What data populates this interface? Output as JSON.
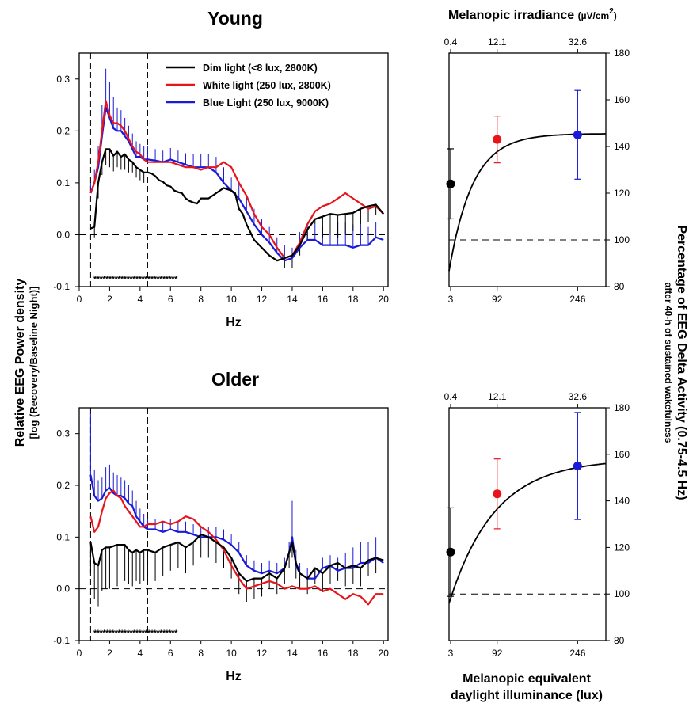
{
  "figure": {
    "left_ylabel": "Relative EEG Power density",
    "left_ylabel_sub": "[log (Recovery/Baseline Night)]",
    "right_ylabel": "Percentage of EEG Delta Activity (0.75-4.5 Hz)",
    "right_ylabel_sub": "after 40-h of sustained wakefulness",
    "top_axis_title": "Melanopic irradiance",
    "top_axis_unit": "(µV/cm",
    "top_axis_unit_sup": "2",
    "top_axis_unit_close": ")",
    "bottom_axis_title_line1": "Melanopic equivalent",
    "bottom_axis_title_line2": "daylight illuminance (lux)",
    "significance_marks": "****************************"
  },
  "colors": {
    "dim": "#000000",
    "white": "#e8141a",
    "blue": "#1a1ad8"
  },
  "chart_data": [
    {
      "id": "young_spectrum",
      "type": "line",
      "title": "Young",
      "xlabel": "Hz",
      "ylabel": "Relative EEG Power density",
      "xlim": [
        0,
        20.3
      ],
      "ylim": [
        -0.1,
        0.35
      ],
      "xticks": [
        0,
        2,
        4,
        6,
        8,
        10,
        12,
        14,
        16,
        18,
        20
      ],
      "yticks": [
        -0.1,
        0.0,
        0.1,
        0.2,
        0.3
      ],
      "vlines": [
        0.75,
        4.5
      ],
      "hline": 0.0,
      "legend_position": "top-right",
      "series": [
        {
          "name": "Dim light (<8 lux, 2800K)",
          "key": "dim",
          "x": [
            0.75,
            1,
            1.25,
            1.5,
            1.75,
            2,
            2.25,
            2.5,
            2.75,
            3,
            3.25,
            3.5,
            3.75,
            4,
            4.25,
            4.5,
            4.75,
            5,
            5.25,
            5.5,
            5.75,
            6,
            6.25,
            6.5,
            6.75,
            7,
            7.25,
            7.5,
            7.75,
            8,
            8.5,
            9,
            9.5,
            10,
            10.25,
            10.5,
            10.75,
            11,
            11.5,
            12,
            12.5,
            13,
            13.5,
            14,
            14.5,
            15,
            15.5,
            16,
            16.5,
            17,
            17.5,
            18,
            18.5,
            19,
            19.5,
            20
          ],
          "y": [
            0.012,
            0.015,
            0.1,
            0.14,
            0.165,
            0.165,
            0.152,
            0.16,
            0.15,
            0.155,
            0.145,
            0.14,
            0.13,
            0.125,
            0.12,
            0.12,
            0.118,
            0.113,
            0.105,
            0.102,
            0.095,
            0.093,
            0.085,
            0.082,
            0.08,
            0.07,
            0.065,
            0.062,
            0.06,
            0.07,
            0.07,
            0.08,
            0.09,
            0.085,
            0.08,
            0.05,
            0.04,
            0.02,
            -0.01,
            -0.025,
            -0.04,
            -0.05,
            -0.045,
            -0.04,
            -0.02,
            0.01,
            0.03,
            0.035,
            0.04,
            0.038,
            0.04,
            0.042,
            0.05,
            0.055,
            0.058,
            0.04
          ],
          "error": [
            0,
            0.02,
            0.03,
            0.025,
            0.03,
            0.035,
            0.03,
            0.03,
            0.025,
            0.03,
            0.025,
            0.02,
            0.02,
            0.02,
            0.02,
            0,
            0,
            0,
            0,
            0,
            0,
            0,
            0,
            0,
            0,
            0,
            0,
            0,
            0,
            0,
            0,
            0,
            0,
            0,
            0,
            0,
            0,
            0,
            0,
            0,
            0,
            0,
            0.02,
            0.025,
            0.02,
            0.02,
            0.01,
            0.04,
            0.04,
            0.045,
            0.04,
            0.035,
            0.03,
            0.03,
            0.02,
            0
          ]
        },
        {
          "name": "White light (250 lux, 2800K)",
          "key": "white",
          "x": [
            0.75,
            1,
            1.25,
            1.5,
            1.75,
            2,
            2.25,
            2.5,
            2.75,
            3,
            3.25,
            3.5,
            3.75,
            4,
            4.25,
            4.5,
            5,
            5.5,
            6,
            6.5,
            7,
            7.5,
            8,
            8.5,
            9,
            9.5,
            10,
            10.5,
            11,
            11.5,
            12,
            12.5,
            13,
            13.5,
            14,
            14.5,
            15,
            15.5,
            16,
            16.5,
            17,
            17.5,
            18,
            18.5,
            19,
            19.5,
            20
          ],
          "y": [
            0.08,
            0.1,
            0.14,
            0.2,
            0.258,
            0.23,
            0.215,
            0.215,
            0.21,
            0.2,
            0.185,
            0.17,
            0.16,
            0.155,
            0.145,
            0.14,
            0.14,
            0.14,
            0.14,
            0.135,
            0.13,
            0.13,
            0.125,
            0.13,
            0.13,
            0.14,
            0.13,
            0.1,
            0.075,
            0.04,
            0.015,
            0.0,
            -0.025,
            -0.045,
            -0.04,
            -0.015,
            0.02,
            0.045,
            0.055,
            0.06,
            0.07,
            0.08,
            0.07,
            0.06,
            0.05,
            0.055,
            0.04
          ],
          "error": []
        },
        {
          "name": "Blue Light (250 lux, 9000K)",
          "key": "blue",
          "x": [
            0.75,
            1,
            1.25,
            1.5,
            1.75,
            2,
            2.25,
            2.5,
            2.75,
            3,
            3.25,
            3.5,
            3.75,
            4,
            4.25,
            4.5,
            5,
            5.5,
            6,
            6.5,
            7,
            7.5,
            8,
            8.5,
            9,
            9.5,
            10,
            10.5,
            11,
            11.5,
            12,
            12.5,
            13,
            13.5,
            14,
            14.5,
            15,
            15.5,
            16,
            16.5,
            17,
            17.5,
            18,
            18.5,
            19,
            19.5,
            20
          ],
          "y": [
            0.08,
            0.1,
            0.13,
            0.19,
            0.245,
            0.225,
            0.205,
            0.2,
            0.2,
            0.19,
            0.18,
            0.165,
            0.15,
            0.15,
            0.145,
            0.145,
            0.143,
            0.14,
            0.145,
            0.14,
            0.135,
            0.13,
            0.13,
            0.13,
            0.12,
            0.1,
            0.085,
            0.07,
            0.045,
            0.02,
            0.0,
            -0.015,
            -0.035,
            -0.05,
            -0.045,
            -0.025,
            -0.01,
            -0.01,
            -0.02,
            -0.02,
            -0.02,
            -0.02,
            -0.025,
            -0.02,
            -0.02,
            -0.005,
            -0.01
          ],
          "error": [
            0.02,
            0.025,
            0.04,
            0.06,
            0.075,
            0.07,
            0.06,
            0.045,
            0.04,
            0.035,
            0.03,
            0.03,
            0.03,
            0.025,
            0.025,
            0.025,
            0.022,
            0.022,
            0.022,
            0.022,
            0.022,
            0.025,
            0.025,
            0.025,
            0.03,
            0.03,
            0.025,
            0.03,
            0.03,
            0.03,
            0.03,
            0.03,
            0.03,
            0.03,
            0.02,
            0.03,
            0.03,
            0.03,
            0.035,
            0.04,
            0.045,
            0.045,
            0.045,
            0.04,
            0.035,
            0.03,
            0
          ]
        }
      ]
    },
    {
      "id": "older_spectrum",
      "type": "line",
      "title": "Older",
      "xlabel": "Hz",
      "ylabel": "Relative EEG Power density",
      "xlim": [
        0,
        20.3
      ],
      "ylim": [
        -0.1,
        0.35
      ],
      "xticks": [
        0,
        2,
        4,
        6,
        8,
        10,
        12,
        14,
        16,
        18,
        20
      ],
      "yticks": [
        -0.1,
        0.0,
        0.1,
        0.2,
        0.3
      ],
      "vlines": [
        0.75,
        4.5
      ],
      "hline": 0.0,
      "series": [
        {
          "name": "Dim light (<8 lux, 2800K)",
          "key": "dim",
          "x": [
            0.75,
            1,
            1.25,
            1.5,
            1.75,
            2,
            2.5,
            3,
            3.25,
            3.5,
            3.75,
            4,
            4.25,
            4.5,
            5,
            5.5,
            6,
            6.5,
            7,
            7.5,
            8,
            8.5,
            9,
            9.5,
            10,
            10.5,
            11,
            11.5,
            12,
            12.5,
            13,
            13.5,
            13.8,
            14,
            14.25,
            14.5,
            15,
            15.5,
            16,
            16.5,
            17,
            17.5,
            18,
            18.5,
            19,
            19.5,
            20
          ],
          "y": [
            0.09,
            0.05,
            0.045,
            0.075,
            0.08,
            0.08,
            0.085,
            0.085,
            0.075,
            0.07,
            0.075,
            0.07,
            0.075,
            0.075,
            0.07,
            0.08,
            0.085,
            0.09,
            0.08,
            0.09,
            0.105,
            0.1,
            0.09,
            0.08,
            0.06,
            0.03,
            0.015,
            0.02,
            0.02,
            0.03,
            0.02,
            0.04,
            0.07,
            0.09,
            0.05,
            0.03,
            0.02,
            0.04,
            0.03,
            0.045,
            0.05,
            0.04,
            0.045,
            0.04,
            0.055,
            0.06,
            0.055
          ],
          "error": [
            0.06,
            0.07,
            0.08,
            0.08,
            0.08,
            0.08,
            0.08,
            0.07,
            0.065,
            0.065,
            0.06,
            0.06,
            0.06,
            0.06,
            0.055,
            0.055,
            0.05,
            0.05,
            0.05,
            0.045,
            0.045,
            0.04,
            0.04,
            0.04,
            0.04,
            0.04,
            0.04,
            0.04,
            0.035,
            0.03,
            0.03,
            0.03,
            0.03,
            0.03,
            0.03,
            0.03,
            0.03,
            0.03,
            0.035,
            0.035,
            0.035,
            0.035,
            0.035,
            0.035,
            0.03,
            0.03,
            0
          ]
        },
        {
          "name": "White light (250 lux, 2800K)",
          "key": "white",
          "x": [
            0.75,
            1,
            1.25,
            1.5,
            1.75,
            2,
            2.25,
            2.5,
            2.75,
            3,
            3.25,
            3.5,
            3.75,
            4,
            4.25,
            4.5,
            5,
            5.5,
            6,
            6.5,
            7,
            7.5,
            8,
            8.5,
            9,
            9.5,
            10,
            10.5,
            11,
            11.5,
            12,
            12.5,
            13,
            13.5,
            14,
            14.5,
            15,
            15.5,
            16,
            16.5,
            17,
            17.5,
            18,
            18.5,
            19,
            19.5,
            20
          ],
          "y": [
            0.14,
            0.11,
            0.12,
            0.15,
            0.175,
            0.185,
            0.19,
            0.18,
            0.175,
            0.16,
            0.15,
            0.14,
            0.13,
            0.12,
            0.12,
            0.125,
            0.125,
            0.13,
            0.125,
            0.13,
            0.14,
            0.135,
            0.12,
            0.11,
            0.095,
            0.075,
            0.045,
            0.02,
            0.0,
            0.005,
            0.01,
            0.015,
            0.01,
            0.0,
            0.005,
            0.0,
            0.0,
            0.005,
            -0.005,
            0.0,
            -0.01,
            -0.02,
            -0.01,
            -0.015,
            -0.03,
            -0.01,
            -0.01
          ],
          "error": []
        },
        {
          "name": "Blue Light (250 lux, 9000K)",
          "key": "blue",
          "x": [
            0.75,
            1,
            1.25,
            1.5,
            1.75,
            2,
            2.25,
            2.5,
            2.75,
            3,
            3.25,
            3.5,
            3.75,
            4,
            4.25,
            4.5,
            5,
            5.5,
            6,
            6.5,
            7,
            7.5,
            8,
            8.5,
            9,
            9.5,
            10,
            10.5,
            11,
            11.5,
            12,
            12.5,
            13,
            13.5,
            13.8,
            14,
            14.25,
            14.5,
            15,
            15.5,
            16,
            16.5,
            17,
            17.5,
            18,
            18.5,
            19,
            19.5,
            20
          ],
          "y": [
            0.22,
            0.18,
            0.17,
            0.175,
            0.19,
            0.195,
            0.185,
            0.18,
            0.18,
            0.175,
            0.165,
            0.16,
            0.14,
            0.13,
            0.12,
            0.115,
            0.115,
            0.11,
            0.115,
            0.11,
            0.11,
            0.105,
            0.1,
            0.1,
            0.1,
            0.095,
            0.085,
            0.07,
            0.045,
            0.035,
            0.03,
            0.035,
            0.03,
            0.04,
            0.07,
            0.1,
            0.045,
            0.03,
            0.02,
            0.02,
            0.04,
            0.045,
            0.035,
            0.04,
            0.04,
            0.05,
            0.05,
            0.06,
            0.05
          ],
          "error": [
            0.12,
            0.05,
            0.04,
            0.04,
            0.045,
            0.045,
            0.04,
            0.04,
            0.035,
            0.035,
            0.035,
            0.03,
            0.03,
            0.025,
            0.025,
            0.02,
            0.02,
            0.02,
            0.02,
            0.02,
            0.02,
            0.02,
            0.02,
            0.02,
            0.02,
            0.02,
            0.02,
            0.02,
            0.02,
            0.02,
            0.02,
            0.02,
            0.02,
            0.02,
            0.02,
            0.07,
            0.03,
            0.02,
            0.02,
            0.02,
            0.02,
            0.02,
            0.025,
            0.03,
            0.04,
            0.04,
            0.04,
            0.04,
            0
          ]
        }
      ]
    },
    {
      "id": "young_delta",
      "type": "scatter",
      "xlabel": "Melanopic equivalent daylight illuminance (lux)",
      "ylabel": "Percentage of EEG Delta Activity (0.75-4.5 Hz)",
      "xlim": [
        0,
        300
      ],
      "ylim": [
        80,
        180
      ],
      "xticks": [
        3,
        92,
        246
      ],
      "top_xticks": [
        "0.4",
        "12.1",
        "32.6"
      ],
      "yticks": [
        80,
        100,
        120,
        140,
        160,
        180
      ],
      "hline": 100,
      "points": [
        {
          "key": "dim",
          "x": 3,
          "y": 124,
          "err": 15
        },
        {
          "key": "white",
          "x": 92,
          "y": 143,
          "err": 10
        },
        {
          "key": "blue",
          "x": 246,
          "y": 145,
          "err": 19
        }
      ],
      "fit": {
        "type": "saturating",
        "ymin": 60,
        "ymax": 145.5,
        "rate": 0.022,
        "x0": -17
      }
    },
    {
      "id": "older_delta",
      "type": "scatter",
      "xlabel": "Melanopic equivalent daylight illuminance (lux)",
      "ylabel": "Percentage of EEG Delta Activity (0.75-4.5 Hz)",
      "xlim": [
        0,
        300
      ],
      "ylim": [
        80,
        180
      ],
      "xticks": [
        3,
        92,
        246
      ],
      "top_xticks": [
        "0.4",
        "12.1",
        "32.6"
      ],
      "yticks": [
        80,
        100,
        120,
        140,
        160,
        180
      ],
      "hline": 100,
      "points": [
        {
          "key": "dim",
          "x": 3,
          "y": 118,
          "err": 19
        },
        {
          "key": "white",
          "x": 92,
          "y": 143,
          "err": 15
        },
        {
          "key": "blue",
          "x": 246,
          "y": 155,
          "err": 23
        }
      ],
      "fit": {
        "type": "saturating",
        "ymin": 90,
        "ymax": 158,
        "rate": 0.0115,
        "x0": -8
      }
    }
  ]
}
